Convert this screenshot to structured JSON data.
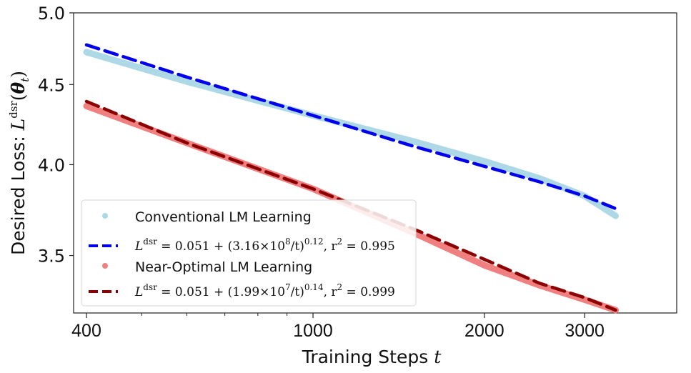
{
  "chart_data": {
    "type": "line",
    "title": "",
    "xlabel": "Training Steps t",
    "ylabel": "Desired Loss: L^dsr(θ_t)",
    "xscale": "log",
    "yscale": "log",
    "xlim": [
      360,
      3500
    ],
    "ylim": [
      3.22,
      5.0
    ],
    "xticks": [
      400,
      1000,
      2000,
      3000
    ],
    "xtick_labels": [
      "400",
      "1000",
      "2000",
      "3000"
    ],
    "yticks": [
      3.5,
      4.0,
      4.5,
      5.0
    ],
    "ytick_labels": [
      "3.5",
      "4.0",
      "4.5",
      "5.0"
    ],
    "grid": false,
    "legend_position": "lower left",
    "series": [
      {
        "name": "Conventional LM Learning",
        "style": "marker-line",
        "color": "#add8e6",
        "x": [
          400,
          600,
          1000,
          1500,
          2000,
          2500,
          3000,
          3400
        ],
        "values": [
          4.72,
          4.52,
          4.3,
          4.14,
          4.02,
          3.92,
          3.82,
          3.71
        ]
      },
      {
        "name": "L^dsr = 0.051 + (3.16×10^8/t)^0.12, r^2 = 0.995",
        "style": "dashed",
        "color": "#0000ee",
        "x": [
          400,
          600,
          1000,
          1500,
          2000,
          2500,
          3000,
          3400
        ],
        "values": [
          4.77,
          4.55,
          4.3,
          4.11,
          3.99,
          3.9,
          3.82,
          3.75
        ]
      },
      {
        "name": "Near-Optimal LM Learning",
        "style": "marker-line",
        "color": "#f08080",
        "x": [
          400,
          600,
          1000,
          1500,
          2000,
          2500,
          3000,
          3400
        ],
        "values": [
          4.36,
          4.13,
          3.86,
          3.62,
          3.45,
          3.35,
          3.28,
          3.23
        ]
      },
      {
        "name": "L^dsr = 0.051 + (1.99×10^7/t)^0.14, r^2 = 0.999",
        "style": "dashed",
        "color": "#8b0000",
        "x": [
          400,
          600,
          1000,
          1500,
          2000,
          2500,
          3000,
          3400
        ],
        "values": [
          4.39,
          4.13,
          3.86,
          3.64,
          3.48,
          3.36,
          3.29,
          3.23
        ]
      }
    ]
  },
  "legend": {
    "entries": [
      {
        "label": "Conventional LM Learning",
        "color": "#add8e6",
        "kind": "dot"
      },
      {
        "label_base": "L",
        "label_sup": "dsr",
        "label_mid": " = 0.051 + (3.16×10",
        "label_exp": "8",
        "label_tail": "/t)",
        "label_pow": "0.12",
        "label_r": ", r",
        "label_r2": "2",
        "label_end": " = 0.995",
        "color": "#0000ee",
        "kind": "dash"
      },
      {
        "label": "Near-Optimal LM Learning",
        "color": "#f08080",
        "kind": "dot"
      },
      {
        "label_base": "L",
        "label_sup": "dsr",
        "label_mid": " = 0.051 + (1.99×10",
        "label_exp": "7",
        "label_tail": "/t)",
        "label_pow": "0.14",
        "label_r": ", r",
        "label_r2": "2",
        "label_end": " = 0.999",
        "color": "#8b0000",
        "kind": "dash"
      }
    ]
  },
  "axes": {
    "xlabel_text": "Training Steps ",
    "xlabel_var": "t",
    "ylabel_text": "Desired Loss: ",
    "ylabel_L": "L",
    "ylabel_sup": "dsr",
    "ylabel_open": "(",
    "ylabel_theta": "θ",
    "ylabel_sub": "t",
    "ylabel_close": ")"
  }
}
